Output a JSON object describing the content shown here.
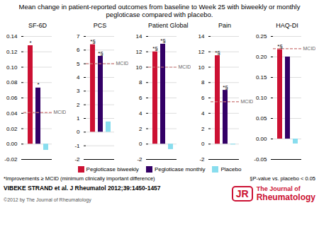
{
  "title": "Mean change in patient-reported outcomes from baseline to Week 25 with biweekly or monthly\npegloticase compared with placebo.",
  "annotations": [
    {
      "text": "*Improvements ≥ MCID (minimum clinically important difference)"
    },
    {
      "text": "§P-value vs. placebo < 0.05"
    },
    {
      "text": "VIBEKE STRAND et al. J Rheumatol 2012;39:1450-1457"
    },
    {
      "text": "©2012 by The Journal of Rheumatology",
      "color": "#555555"
    },
    {
      "text": "JR",
      "color": "#cc1133"
    },
    {
      "text": "The Journal of",
      "color": "#cc1133"
    },
    {
      "text": "Rheumatology",
      "color": "#cc1133"
    }
  ],
  "chart_data": [
    {
      "type": "bar",
      "title": "SF-6D",
      "categories": [
        "Pegloticase biweekly",
        "Pegloticase monthly",
        "Placebo"
      ],
      "values": [
        0.128,
        0.073,
        -0.008
      ],
      "colors": [
        "#cc1133",
        "#330066",
        "#88ddee"
      ],
      "ylim": [
        -0.02,
        0.14
      ],
      "yticks": [
        -0.02,
        {
          "value": 0.0,
          "label": "0.00"
        },
        0.02,
        0.04,
        0.06,
        0.08,
        {
          "value": 0.1,
          "label": "0.10"
        },
        0.12,
        0.14
      ],
      "reference_line": {
        "value": 0.041,
        "label": "MCID",
        "color": "#cc7777"
      },
      "annotations": [
        {
          "category": "Pegloticase biweekly",
          "text": "*"
        },
        {
          "category": "Pegloticase monthly",
          "text": "*"
        }
      ],
      "grid": true,
      "tick_labels": "y",
      "legend": "bottom"
    },
    {
      "type": "bar",
      "title": "PCS",
      "categories": [
        "Pegloticase biweekly",
        "Pegloticase monthly",
        "Placebo"
      ],
      "values": [
        6.4,
        5.55,
        0.75
      ],
      "colors": [
        "#cc1133",
        "#330066",
        "#88ddee"
      ],
      "ylim": [
        -2,
        7
      ],
      "yticks": [
        -2,
        -1,
        0,
        1,
        2,
        3,
        4,
        5,
        6,
        7
      ],
      "reference_line": {
        "value": 5.0,
        "label": "MCID",
        "color": "#cc7777"
      },
      "annotations": [
        {
          "category": "Pegloticase biweekly",
          "text": "*§"
        },
        {
          "category": "Pegloticase monthly",
          "text": "*§"
        }
      ],
      "grid": true,
      "tick_labels": "y",
      "legend": "bottom"
    },
    {
      "type": "bar",
      "title": "Patient Global",
      "categories": [
        "Pegloticase biweekly",
        "Pegloticase monthly",
        "Placebo"
      ],
      "values": [
        12.0,
        13.0,
        -0.7
      ],
      "colors": [
        "#cc1133",
        "#330066",
        "#88ddee"
      ],
      "ylim": [
        -2,
        14
      ],
      "yticks": [
        -2,
        0,
        2,
        4,
        6,
        8,
        10,
        12,
        14
      ],
      "reference_line": {
        "value": 10.0,
        "label": "MCID",
        "color": "#cc7777"
      },
      "annotations": [
        {
          "category": "Pegloticase biweekly",
          "text": "*§"
        },
        {
          "category": "Pegloticase monthly",
          "text": "*§"
        }
      ],
      "grid": true,
      "tick_labels": "y",
      "legend": "bottom"
    },
    {
      "type": "bar",
      "title": "Pain",
      "categories": [
        "Pegloticase biweekly",
        "Pegloticase monthly",
        "Placebo"
      ],
      "values": [
        11.5,
        7.0,
        -0.1
      ],
      "colors": [
        "#cc1133",
        "#330066",
        "#88ddee"
      ],
      "ylim": [
        -2,
        14
      ],
      "yticks": [
        -2,
        0,
        2,
        4,
        6,
        8,
        10,
        12,
        14
      ],
      "reference_line": {
        "value": 5.5,
        "label": "MCID",
        "color": "#cc7777"
      },
      "annotations": [
        {
          "category": "Pegloticase biweekly",
          "text": "*§"
        },
        {
          "category": "Pegloticase monthly",
          "text": "*§"
        }
      ],
      "grid": true,
      "tick_labels": "y",
      "legend": "bottom"
    },
    {
      "type": "bar",
      "title": "HAQ-DI",
      "categories": [
        "Pegloticase biweekly",
        "Pegloticase monthly",
        "Placebo"
      ],
      "values": [
        0.218,
        0.2,
        -0.012
      ],
      "colors": [
        "#cc1133",
        "#330066",
        "#88ddee"
      ],
      "ylim": [
        -0.05,
        0.25
      ],
      "yticks": [
        -0.05,
        {
          "value": 0.0,
          "label": "0.00"
        },
        0.05,
        {
          "value": 0.1,
          "label": "0.10"
        },
        0.15,
        {
          "value": 0.2,
          "label": "0.20"
        },
        0.25
      ],
      "reference_line": {
        "value": 0.22,
        "label": "MCID",
        "color": "#cc7777"
      },
      "annotations": [
        {
          "category": "Pegloticase biweekly",
          "text": "*§"
        }
      ],
      "grid": true,
      "tick_labels": "y",
      "legend": "bottom"
    }
  ]
}
